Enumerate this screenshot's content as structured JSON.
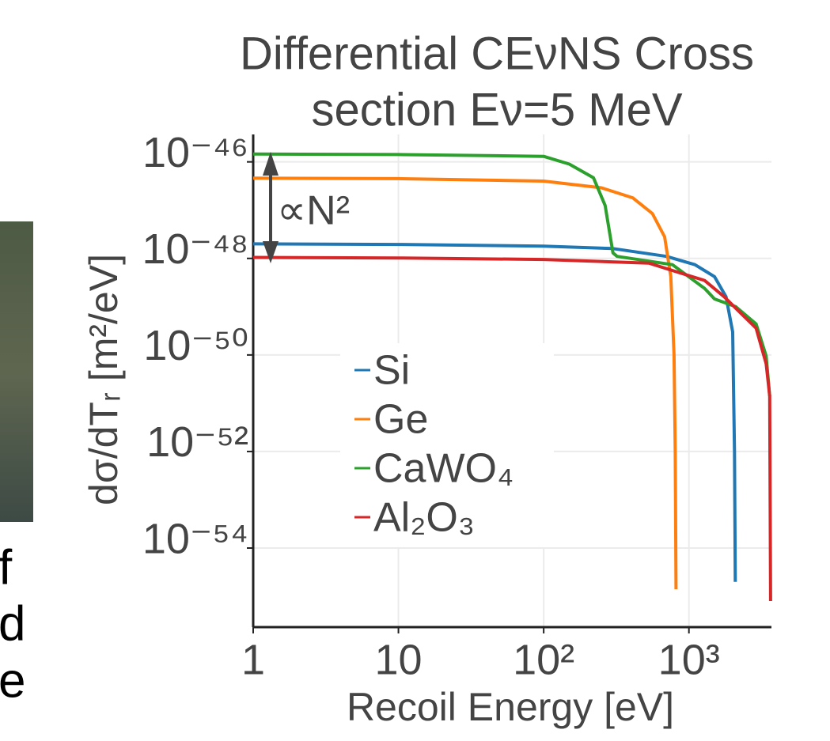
{
  "slide_text": [
    "f",
    "d",
    "e"
  ],
  "chart_data": {
    "type": "line",
    "title": [
      "Differential CEνNS Cross",
      "section Eν=5 MeV"
    ],
    "xlabel": "Recoil Energy [eV]",
    "ylabel": "dσ/dTᵣ [m²/eV]",
    "annotation": "∝N²",
    "xscale": "log",
    "yscale": "log",
    "xlim": [
      1,
      3700
    ],
    "ylim": [
      2.3e-56,
      3.7e-46
    ],
    "xticks": [
      1,
      10,
      {
        "value": 100,
        "label": "10²"
      },
      {
        "value": 1000,
        "label": "10³"
      }
    ],
    "yticks": [
      {
        "value": 1e-46,
        "label": "10⁻⁴⁶"
      },
      {
        "value": 1e-48,
        "label": "10⁻⁴⁸"
      },
      {
        "value": 1e-50,
        "label": "10⁻⁵⁰"
      },
      {
        "value": 1e-52,
        "label": "10⁻⁵²"
      },
      {
        "value": 1e-54,
        "label": "10⁻⁵⁴"
      }
    ],
    "grid": true,
    "legend": "center",
    "series": [
      {
        "name": "Si",
        "color": "#1f77b4",
        "x": [
          1,
          10,
          100,
          300,
          700,
          1100,
          1500,
          1800,
          2000,
          2060,
          2085
        ],
        "values": [
          2e-48,
          1.95e-48,
          1.8e-48,
          1.6e-48,
          1.1e-48,
          7.4e-49,
          4.2e-49,
          1.6e-49,
          3e-50,
          1e-52,
          2e-55
        ]
      },
      {
        "name": "Ge",
        "color": "#ff7f0e",
        "x": [
          1,
          10,
          100,
          250,
          410,
          560,
          680,
          750,
          790,
          805,
          815
        ],
        "values": [
          4.6e-47,
          4.5e-47,
          4e-47,
          2.9e-47,
          1.8e-47,
          8.5e-48,
          2.8e-48,
          4.2e-49,
          1e-50,
          1e-52,
          1.4e-55
        ]
      },
      {
        "name": "CaWO₄",
        "color": "#2ca02c",
        "x": [
          1,
          10,
          100,
          150,
          220,
          265,
          300,
          320,
          770,
          1280,
          1500,
          2100,
          2900,
          3400,
          3600
        ],
        "values": [
          1.45e-46,
          1.42e-46,
          1.3e-46,
          9e-47,
          4.7e-47,
          1.25e-47,
          1.3e-48,
          1.1e-48,
          7.4e-49,
          2.4e-49,
          1.45e-49,
          1e-49,
          4.4e-50,
          9.5e-51,
          1.4e-51
        ]
      },
      {
        "name": "Al₂O₃",
        "color": "#d62728",
        "x": [
          1,
          10,
          100,
          530,
          870,
          1280,
          1750,
          2100,
          2900,
          3400,
          3600,
          3650
        ],
        "values": [
          1.05e-48,
          1.02e-48,
          9.5e-49,
          8e-49,
          5e-49,
          3.5e-49,
          1.6e-49,
          9.3e-50,
          3.6e-50,
          6.6e-51,
          1.4e-51,
          8e-56
        ]
      }
    ]
  }
}
